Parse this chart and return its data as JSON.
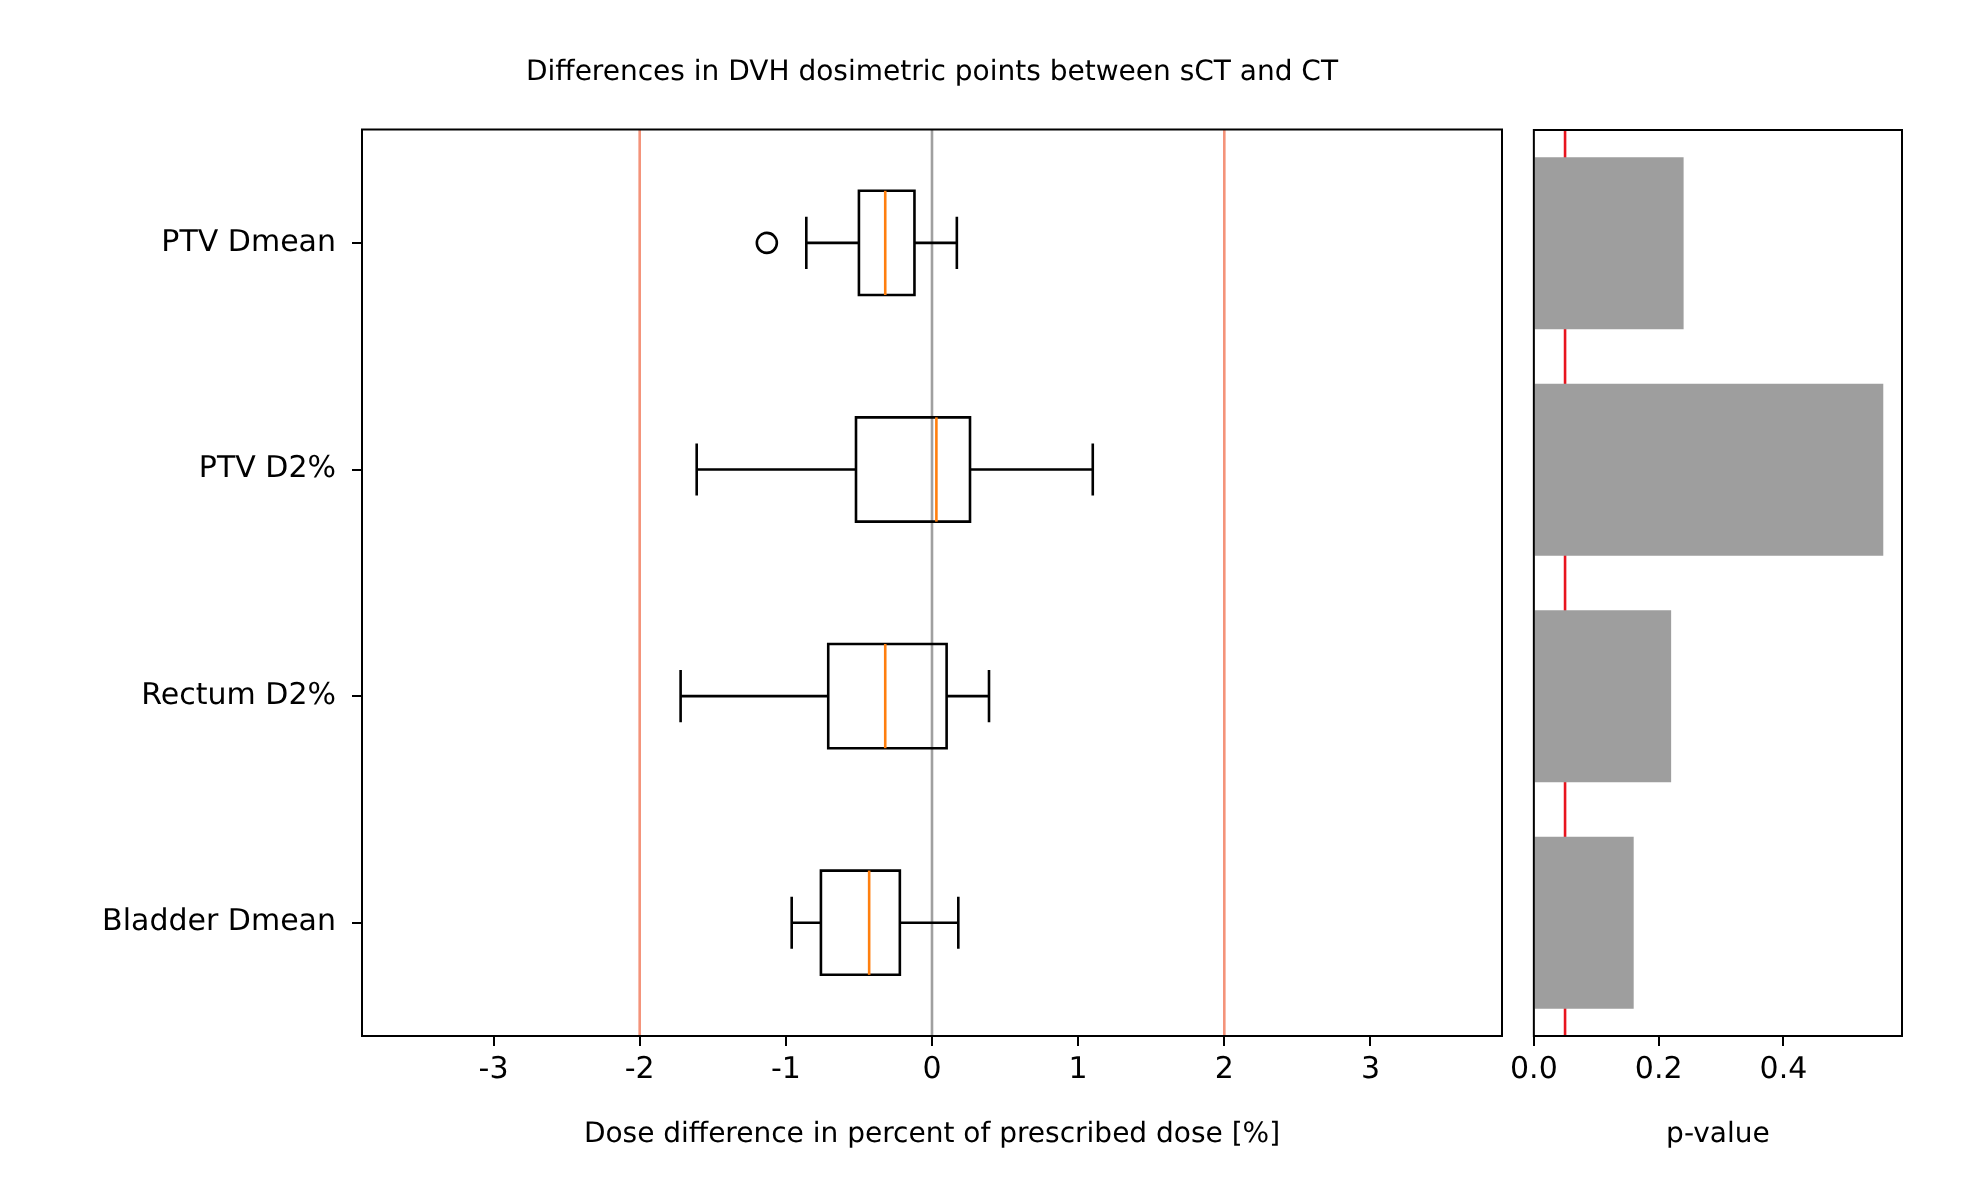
{
  "chart_data": [
    {
      "type": "box",
      "title": "Differences in DVH dosimetric points between sCT and CT",
      "xlabel": "Dose difference in percent of prescribed dose [%]",
      "orientation": "horizontal",
      "categories": [
        "PTV Dmean",
        "PTV D2%",
        "Rectum D2%",
        "Bladder Dmean"
      ],
      "boxes": [
        {
          "low": -0.86,
          "q1": -0.5,
          "median": -0.32,
          "q3": -0.12,
          "high": 0.17,
          "outliers": [
            -1.13
          ]
        },
        {
          "low": -1.61,
          "q1": -0.52,
          "median": 0.03,
          "q3": 0.26,
          "high": 1.1
        },
        {
          "low": -1.72,
          "q1": -0.71,
          "median": -0.32,
          "q3": 0.1,
          "high": 0.39
        },
        {
          "low": -0.96,
          "q1": -0.76,
          "median": -0.43,
          "q3": -0.22,
          "high": 0.18
        }
      ],
      "color": "#000000",
      "xlim": [
        -3.9,
        3.9
      ],
      "xticks": [
        -3,
        -2,
        -1,
        0,
        1,
        2,
        3
      ],
      "grid": false,
      "legend": false,
      "ref_lines": [
        {
          "axis": "x",
          "value": -2,
          "color": "#f4937a"
        },
        {
          "axis": "x",
          "value": 2,
          "color": "#f4937a"
        },
        {
          "axis": "x",
          "value": 0,
          "color": "#a0a0a0"
        }
      ]
    },
    {
      "type": "bar",
      "orientation": "horizontal",
      "xlabel": "p-value",
      "categories": [
        null,
        null,
        null,
        null
      ],
      "values": [
        0.24,
        0.56,
        0.22,
        0.16
      ],
      "color": "#9e9e9e",
      "xlim": [
        0,
        0.59
      ],
      "xticks": [
        {
          "value": 0,
          "label": "0.0"
        },
        {
          "value": 0.2,
          "label": "0.2"
        },
        {
          "value": 0.4,
          "label": "0.4"
        }
      ],
      "tick_labels": "x",
      "grid": false,
      "legend": false,
      "ref_lines": [
        {
          "axis": "x",
          "value": 0.05,
          "color": "#e8141e"
        }
      ]
    }
  ]
}
